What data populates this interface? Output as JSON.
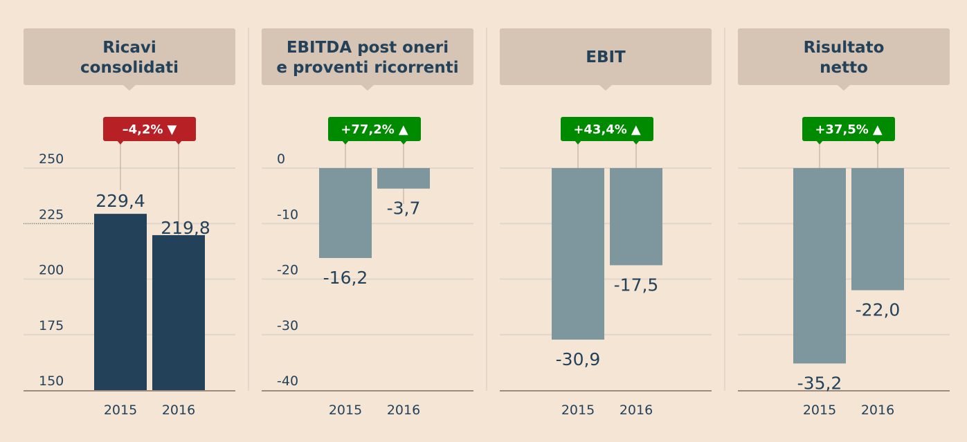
{
  "colors": {
    "background": "#f5e5d5",
    "title_box": "#d6c4b4",
    "text": "#23425a",
    "bar_positive": "#24415a",
    "bar_negative": "#7e979e",
    "decrease": "#b72025",
    "increase": "#008a00",
    "grid": "#e0d6cc",
    "baseline": "#9c8a7c"
  },
  "chart_data": [
    {
      "type": "bar",
      "title_lines": [
        "Ricavi",
        "consolidati"
      ],
      "categories": [
        "2015",
        "2016"
      ],
      "values": [
        229.4,
        219.8
      ],
      "value_labels": [
        "229,4",
        "219,8"
      ],
      "ylim": [
        150,
        250
      ],
      "yticks": [
        250,
        225,
        200,
        175,
        150
      ],
      "ytick_labels": [
        "250",
        "225",
        "200",
        "175",
        "150"
      ],
      "change": {
        "label": "–4,2%",
        "direction": "down",
        "arrow": "▼"
      }
    },
    {
      "type": "bar",
      "title_lines": [
        "EBITDA post oneri",
        "e proventi ricorrenti"
      ],
      "categories": [
        "2015",
        "2016"
      ],
      "values": [
        -16.2,
        -3.7
      ],
      "value_labels": [
        "-16,2",
        "-3,7"
      ],
      "ylim": [
        -40,
        0
      ],
      "yticks": [
        0,
        -10,
        -20,
        -30,
        -40
      ],
      "ytick_labels": [
        "0",
        "-10",
        "-20",
        "-30",
        "-40"
      ],
      "change": {
        "label": "+77,2%",
        "direction": "up",
        "arrow": "▲"
      }
    },
    {
      "type": "bar",
      "title_lines": [
        "EBIT"
      ],
      "categories": [
        "2015",
        "2016"
      ],
      "values": [
        -30.9,
        -17.5
      ],
      "value_labels": [
        "-30,9",
        "-17,5"
      ],
      "ylim": [
        -40,
        0
      ],
      "yticks": [],
      "ytick_labels": [],
      "change": {
        "label": "+43,4%",
        "direction": "up",
        "arrow": "▲"
      }
    },
    {
      "type": "bar",
      "title_lines": [
        "Risultato",
        "netto"
      ],
      "categories": [
        "2015",
        "2016"
      ],
      "values": [
        -35.2,
        -22.0
      ],
      "value_labels": [
        "-35,2",
        "-22,0"
      ],
      "ylim": [
        -40,
        0
      ],
      "yticks": [],
      "ytick_labels": [],
      "change": {
        "label": "+37,5%",
        "direction": "up",
        "arrow": "▲"
      }
    }
  ]
}
